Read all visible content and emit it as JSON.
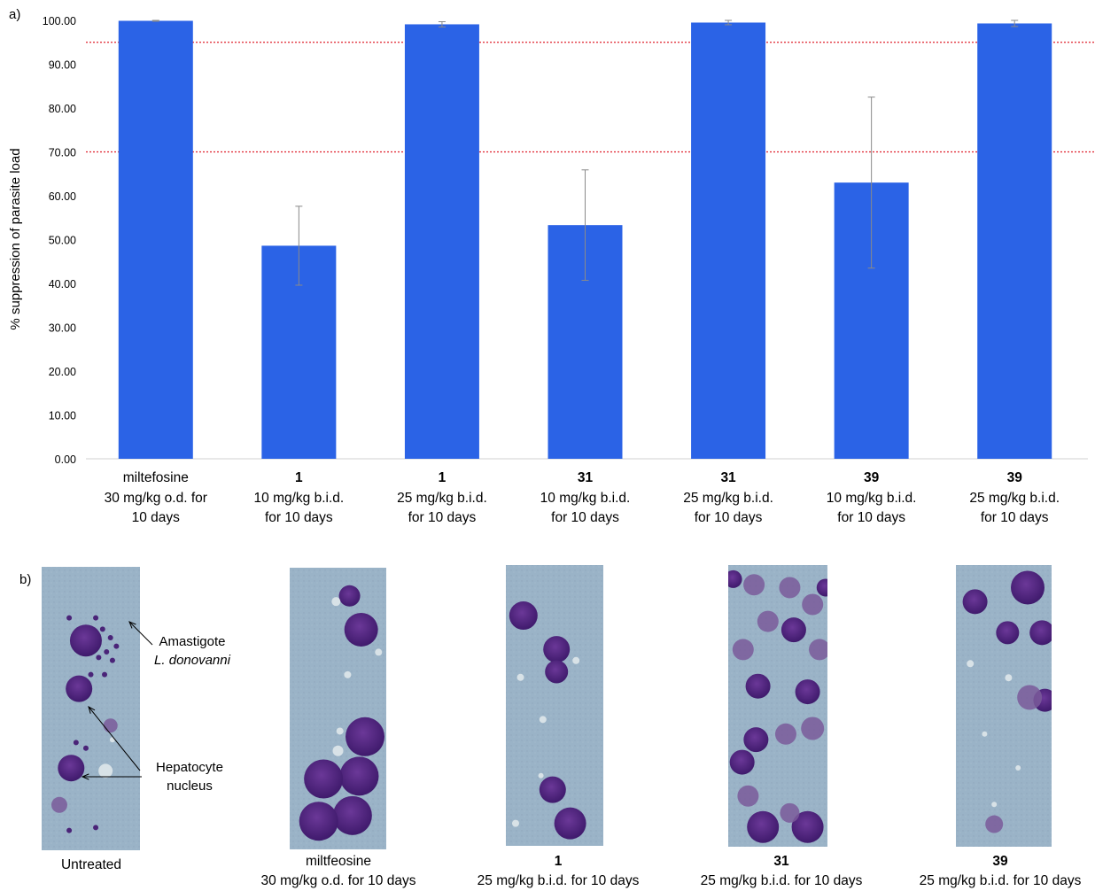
{
  "panel_labels": {
    "a": "a)",
    "b": "b)"
  },
  "chart_data": {
    "type": "bar",
    "title": "",
    "xlabel": "",
    "ylabel": "% suppression of parasite load",
    "ylim": [
      0,
      100
    ],
    "yticks": [
      "0.00",
      "10.00",
      "20.00",
      "30.00",
      "40.00",
      "50.00",
      "60.00",
      "70.00",
      "80.00",
      "90.00",
      "100.00"
    ],
    "bar_color": "#2b63e6",
    "reference_lines": [
      {
        "y": 95,
        "color": "#e0202c",
        "style": "dotted"
      },
      {
        "y": 70,
        "color": "#e0202c",
        "style": "dotted"
      }
    ],
    "categories": [
      {
        "compound": "miltefosine",
        "line2": "30 mg/kg o.d. for",
        "line3": "10 days",
        "bold": false
      },
      {
        "compound": "1",
        "line2": "10 mg/kg b.i.d.",
        "line3": "for 10 days",
        "bold": true
      },
      {
        "compound": "1",
        "line2": "25 mg/kg b.i.d.",
        "line3": "for 10 days",
        "bold": true
      },
      {
        "compound": "31",
        "line2": "10 mg/kg b.i.d.",
        "line3": "for 10 days",
        "bold": true
      },
      {
        "compound": "31",
        "line2": "25 mg/kg b.i.d.",
        "line3": "for 10 days",
        "bold": true
      },
      {
        "compound": "39",
        "line2": "10 mg/kg b.i.d.",
        "line3": "for 10 days",
        "bold": true
      },
      {
        "compound": "39",
        "line2": "25 mg/kg b.i.d.",
        "line3": "for 10 days",
        "bold": true
      }
    ],
    "values": [
      99.9,
      48.6,
      99.1,
      53.3,
      99.5,
      63.0,
      99.3
    ],
    "errors": [
      0.1,
      9.0,
      0.6,
      12.6,
      0.5,
      19.5,
      0.7
    ]
  },
  "micrographs": [
    {
      "caption_bold": "",
      "caption_line1": "Untreated",
      "caption_line2": ""
    },
    {
      "caption_bold": "",
      "caption_line1": "miltfeosine",
      "caption_line2": "30 mg/kg o.d. for 10 days"
    },
    {
      "caption_bold": "1",
      "caption_line1": "",
      "caption_line2": "25 mg/kg b.i.d. for 10 days"
    },
    {
      "caption_bold": "31",
      "caption_line1": "",
      "caption_line2": "25 mg/kg b.i.d. for 10 days"
    },
    {
      "caption_bold": "39",
      "caption_line1": "",
      "caption_line2": "25 mg/kg b.i.d. for 10 days"
    }
  ],
  "annotations": {
    "amastigote_line1": "Amastigote",
    "amastigote_line2": "L. donovanni",
    "hepatocyte_line1": "Hepatocyte",
    "hepatocyte_line2": "nucleus"
  },
  "stain_colors": {
    "background": "#9ab3c7",
    "nucleus": "#5a2a8a",
    "rbc": "#7a5a9a",
    "vacuole": "#dfe7ea"
  }
}
